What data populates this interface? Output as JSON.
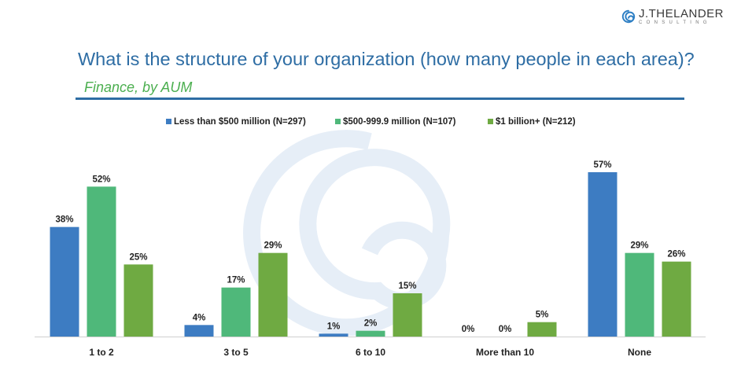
{
  "brand": {
    "name": "J.THELANDER",
    "tagline": "CONSULTING"
  },
  "header": {
    "title": "What is the structure of your organization (how many people in each area)?",
    "subtitle": "Finance, by AUM"
  },
  "chart_data": {
    "type": "bar",
    "title": "What is the structure of your organization (how many people in each area)?",
    "subtitle": "Finance, by AUM",
    "categories": [
      "1 to 2",
      "3 to 5",
      "6 to 10",
      "More than 10",
      "None"
    ],
    "series": [
      {
        "name": "Less than $500 million (N=297)",
        "color": "#3d7cc2",
        "values": [
          38,
          4,
          1,
          0,
          57
        ],
        "labels": [
          "38%",
          "4%",
          "1%",
          "0%",
          "57%"
        ]
      },
      {
        "name": "$500-999.9 million (N=107)",
        "color": "#4fb87a",
        "values": [
          52,
          17,
          2,
          0,
          29
        ],
        "labels": [
          "52%",
          "17%",
          "2%",
          "0%",
          "29%"
        ]
      },
      {
        "name": "$1 billion+ (N=212)",
        "color": "#6faa42",
        "values": [
          25,
          29,
          15,
          5,
          26
        ],
        "labels": [
          "25%",
          "29%",
          "15%",
          "5%",
          "26%"
        ]
      }
    ],
    "ylim": [
      0,
      60
    ],
    "unit": "%",
    "xlabel": "",
    "ylabel": "",
    "grid": false,
    "legend_position": "top-center"
  }
}
